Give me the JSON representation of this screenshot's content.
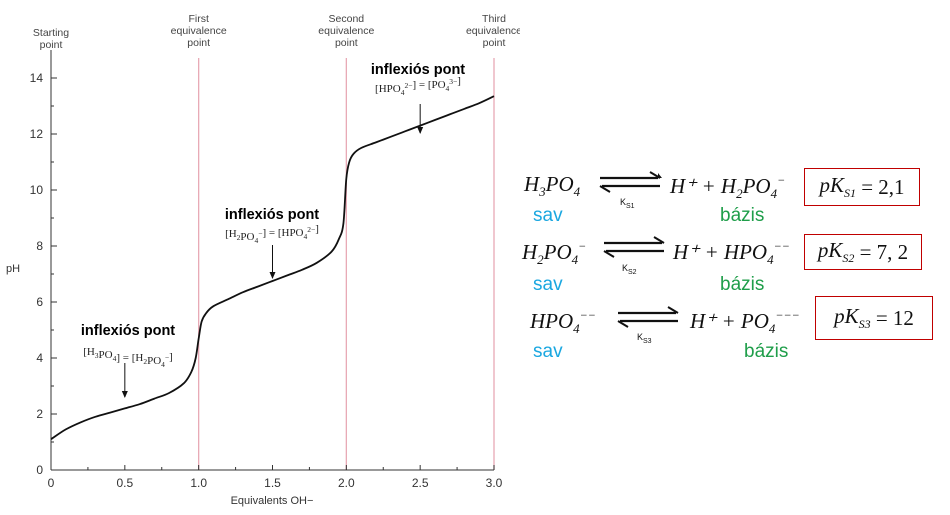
{
  "chart_data": {
    "type": "line",
    "xlabel": "Equivalents OH−",
    "ylabel": "pH",
    "xlim": [
      0,
      3.0
    ],
    "ylim": [
      0,
      15
    ],
    "xticks": [
      "0",
      "0.5",
      "1.0",
      "1.5",
      "2.0",
      "2.5",
      "3.0"
    ],
    "yticks": [
      "0",
      "2",
      "4",
      "6",
      "8",
      "10",
      "12",
      "14"
    ],
    "grid": false,
    "points": {
      "x": [
        0,
        0.1,
        0.2,
        0.3,
        0.4,
        0.5,
        0.6,
        0.7,
        0.8,
        0.9,
        0.95,
        0.98,
        1.0,
        1.02,
        1.05,
        1.1,
        1.2,
        1.3,
        1.4,
        1.5,
        1.6,
        1.7,
        1.8,
        1.9,
        1.95,
        1.98,
        2.0,
        2.02,
        2.05,
        2.1,
        2.2,
        2.3,
        2.4,
        2.5,
        2.6,
        2.7,
        2.8,
        2.9,
        3.0
      ],
      "y": [
        1.1,
        1.45,
        1.7,
        1.9,
        2.05,
        2.2,
        2.35,
        2.55,
        2.75,
        3.1,
        3.5,
        4.0,
        4.7,
        5.3,
        5.6,
        5.85,
        6.1,
        6.35,
        6.55,
        6.75,
        6.95,
        7.15,
        7.4,
        7.8,
        8.25,
        8.8,
        10.4,
        11.0,
        11.3,
        11.5,
        11.7,
        11.9,
        12.1,
        12.3,
        12.5,
        12.7,
        12.9,
        13.1,
        13.35
      ]
    },
    "equivalence_lines": [
      1.0,
      2.0,
      3.0
    ],
    "top_labels": [
      {
        "x": 0,
        "l1": "Starting",
        "l2": "point",
        "l3": ""
      },
      {
        "x": 1.0,
        "l1": "First",
        "l2": "equivalence",
        "l3": "point"
      },
      {
        "x": 2.0,
        "l1": "Second",
        "l2": "equivalence",
        "l3": "point"
      },
      {
        "x": 3.0,
        "l1": "Third",
        "l2": "equivalence",
        "l3": "point"
      }
    ],
    "annotations": [
      {
        "heading": "inflexiós pont",
        "x": 0.5,
        "y": 2.2
      },
      {
        "heading": "inflexiós pont",
        "x": 1.5,
        "y": 6.75
      },
      {
        "heading": "inflexiós pont",
        "x": 2.5,
        "y": 12.3
      }
    ],
    "annotation_formulas": [
      [
        "[H",
        "3",
        "PO",
        "4",
        "] = [H",
        "2",
        "PO",
        "4",
        "−",
        "]"
      ],
      [
        "[H",
        "2",
        "PO",
        "4",
        "−",
        "] = [HPO",
        "4",
        "2−",
        "]"
      ],
      [
        "[HPO",
        "4",
        "2−",
        "] = [PO",
        "4",
        "3−",
        "]"
      ]
    ]
  },
  "equilibria": [
    {
      "acid": [
        "H",
        "3",
        "PO",
        "4",
        ""
      ],
      "base": [
        "H",
        "2",
        "PO",
        "4",
        "−"
      ],
      "ks": [
        "K",
        "S1"
      ],
      "pk": [
        "pK",
        "S1",
        "= 2,1"
      ],
      "sav": "sav",
      "bazis": "bázis"
    },
    {
      "acid": [
        "H",
        "2",
        "PO",
        "4",
        "−"
      ],
      "base": [
        "",
        "",
        "HPO",
        "4",
        "−−"
      ],
      "ks": [
        "K",
        "S2"
      ],
      "pk": [
        "pK",
        "S2",
        "= 7, 2"
      ],
      "sav": "sav",
      "bazis": "bázis"
    },
    {
      "acid": [
        "",
        "",
        "HPO",
        "4",
        "−−"
      ],
      "base": [
        "",
        "",
        "PO",
        "4",
        "−−−"
      ],
      "ks": [
        "K",
        "S3"
      ],
      "pk": [
        "pK",
        "S3",
        "= 12"
      ],
      "sav": "sav",
      "bazis": "bázis"
    }
  ],
  "hplus": "H⁺ +",
  "colors": {
    "sav": "#1aa7e0",
    "bazis": "#1f9e4a",
    "box": "#c00000",
    "equivalence_line": "#e8a9b5"
  }
}
